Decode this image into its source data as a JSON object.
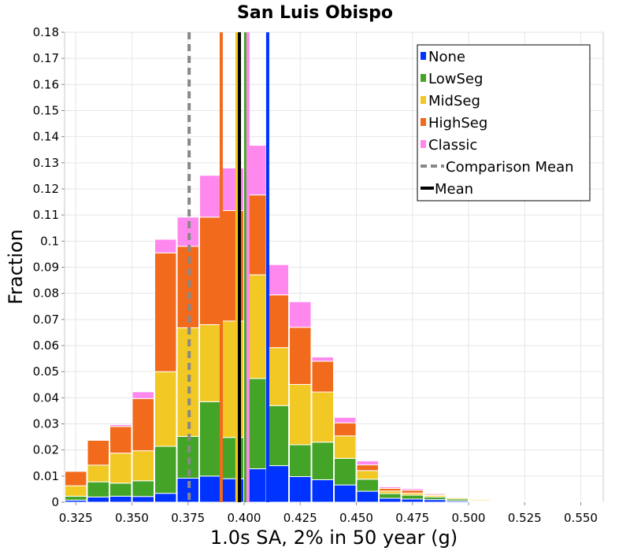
{
  "chart_data": {
    "type": "bar",
    "title": "San Luis Obispo",
    "xlabel": "1.0s SA, 2% in 50 year (g)",
    "ylabel": "Fraction",
    "xlim": [
      0.32,
      0.56
    ],
    "ylim": [
      0,
      0.18
    ],
    "bin_width": 0.01,
    "x_ticks": [
      {
        "v": 0.325,
        "label": "0.325"
      },
      {
        "v": 0.35,
        "label": "0.350"
      },
      {
        "v": 0.375,
        "label": "0.375"
      },
      {
        "v": 0.4,
        "label": "0.400"
      },
      {
        "v": 0.425,
        "label": "0.425"
      },
      {
        "v": 0.45,
        "label": "0.450"
      },
      {
        "v": 0.475,
        "label": "0.475"
      },
      {
        "v": 0.5,
        "label": "0.500"
      },
      {
        "v": 0.525,
        "label": "0.525"
      },
      {
        "v": 0.55,
        "label": "0.550"
      }
    ],
    "y_ticks": [
      {
        "v": 0,
        "label": "0"
      },
      {
        "v": 0.01,
        "label": "0.01"
      },
      {
        "v": 0.02,
        "label": "0.02"
      },
      {
        "v": 0.03,
        "label": "0.03"
      },
      {
        "v": 0.04,
        "label": "0.04"
      },
      {
        "v": 0.05,
        "label": "0.05"
      },
      {
        "v": 0.06,
        "label": "0.06"
      },
      {
        "v": 0.07,
        "label": "0.07"
      },
      {
        "v": 0.08,
        "label": "0.08"
      },
      {
        "v": 0.09,
        "label": "0.09"
      },
      {
        "v": 0.1,
        "label": "0.1"
      },
      {
        "v": 0.11,
        "label": "0.11"
      },
      {
        "v": 0.12,
        "label": "0.12"
      },
      {
        "v": 0.13,
        "label": "0.13"
      },
      {
        "v": 0.14,
        "label": "0.14"
      },
      {
        "v": 0.15,
        "label": "0.15"
      },
      {
        "v": 0.16,
        "label": "0.16"
      },
      {
        "v": 0.17,
        "label": "0.17"
      },
      {
        "v": 0.18,
        "label": "0.18"
      }
    ],
    "bin_starts": [
      0.32,
      0.33,
      0.34,
      0.35,
      0.36,
      0.37,
      0.38,
      0.39,
      0.4,
      0.41,
      0.42,
      0.43,
      0.44,
      0.45,
      0.46,
      0.47,
      0.48,
      0.49,
      0.5,
      0.51,
      0.52,
      0.53,
      0.54,
      0.55
    ],
    "series": [
      {
        "name": "None",
        "color": "#0033ff",
        "values": [
          0.0008,
          0.002,
          0.0023,
          0.0022,
          0.0034,
          0.0092,
          0.01,
          0.009,
          0.0128,
          0.014,
          0.0098,
          0.0086,
          0.0066,
          0.0042,
          0.0015,
          0.0012,
          0.001,
          0.0005,
          0.0002,
          0.0001,
          0.0001,
          0.0,
          0.0,
          0.0
        ]
      },
      {
        "name": "LowSeg",
        "color": "#44a428",
        "values": [
          0.0015,
          0.0058,
          0.005,
          0.006,
          0.018,
          0.016,
          0.0285,
          0.0158,
          0.0346,
          0.023,
          0.0122,
          0.0144,
          0.0102,
          0.0046,
          0.0018,
          0.0015,
          0.001,
          0.0007,
          0.0003,
          0.0002,
          0.0001,
          0.0001,
          0.0,
          0.0
        ]
      },
      {
        "name": "MidSeg",
        "color": "#f2c824",
        "values": [
          0.004,
          0.0064,
          0.0115,
          0.0115,
          0.0286,
          0.0416,
          0.0295,
          0.0446,
          0.0397,
          0.0222,
          0.0231,
          0.0192,
          0.0086,
          0.0033,
          0.001,
          0.0008,
          0.0006,
          0.0005,
          0.0004,
          0.0003,
          0.0002,
          0.0001,
          0.0001,
          0.0
        ]
      },
      {
        "name": "HighSeg",
        "color": "#f26b1d",
        "values": [
          0.0055,
          0.0095,
          0.0102,
          0.02,
          0.0455,
          0.0312,
          0.0412,
          0.0423,
          0.0306,
          0.0202,
          0.0219,
          0.0118,
          0.005,
          0.0022,
          0.001,
          0.0011,
          0.0004,
          0.0002,
          0.0002,
          0.0001,
          0.0001,
          0.0001,
          0.0,
          0.0
        ]
      },
      {
        "name": "Classic",
        "color": "#ff88ee",
        "values": [
          0.0,
          0.0,
          0.0007,
          0.0026,
          0.0052,
          0.0112,
          0.016,
          0.0163,
          0.019,
          0.0116,
          0.0098,
          0.0016,
          0.0021,
          0.0015,
          0.0006,
          0.0006,
          0.0004,
          0.0003,
          0.0002,
          0.0002,
          0.0003,
          0.0001,
          0.0001,
          0.0003
        ]
      }
    ],
    "vlines": [
      {
        "name": "Comparison Mean",
        "x": 0.3755,
        "color": "#888888",
        "dashed": true,
        "width": 4
      },
      {
        "name": "None mean",
        "x": 0.4105,
        "color": "#0033ff",
        "dashed": false,
        "width": 4
      },
      {
        "name": "LowSeg mean",
        "x": 0.4007,
        "color": "#44a428",
        "dashed": false,
        "width": 4
      },
      {
        "name": "MidSeg mean",
        "x": 0.3968,
        "color": "#f2c824",
        "dashed": false,
        "width": 4
      },
      {
        "name": "HighSeg mean",
        "x": 0.3898,
        "color": "#f26b1d",
        "dashed": false,
        "width": 4
      },
      {
        "name": "Classic mean",
        "x": 0.4017,
        "color": "#ff88ee",
        "dashed": false,
        "width": 4
      },
      {
        "name": "Mean",
        "x": 0.3979,
        "color": "#000000",
        "dashed": false,
        "width": 4
      }
    ],
    "legend": {
      "placement": "top-right",
      "entries": [
        {
          "label": "None",
          "color": "#0033ff",
          "kind": "box"
        },
        {
          "label": "LowSeg",
          "color": "#44a428",
          "kind": "box"
        },
        {
          "label": "MidSeg",
          "color": "#f2c824",
          "kind": "box"
        },
        {
          "label": "HighSeg",
          "color": "#f26b1d",
          "kind": "box"
        },
        {
          "label": "Classic",
          "color": "#ff88ee",
          "kind": "box"
        },
        {
          "label": "Comparison Mean",
          "color": "#888888",
          "kind": "dash"
        },
        {
          "label": "Mean",
          "color": "#000000",
          "kind": "line"
        }
      ]
    },
    "grid": true
  }
}
